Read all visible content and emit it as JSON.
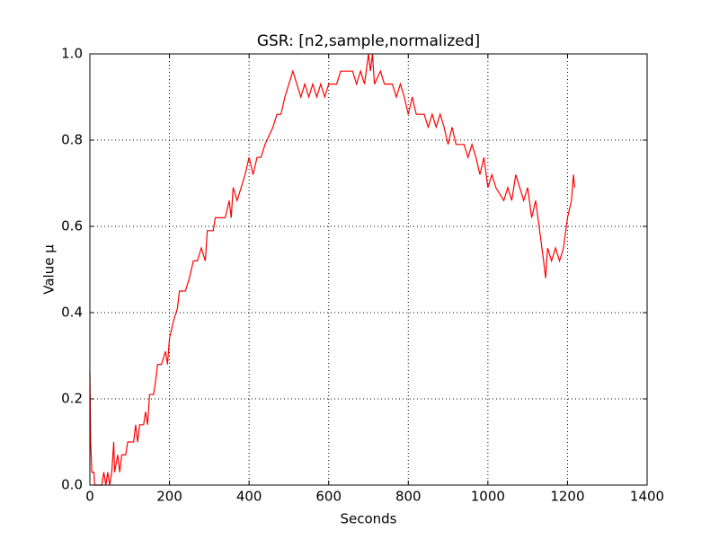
{
  "chart_data": {
    "type": "line",
    "title": "GSR: [n2,sample,normalized]",
    "x_label": "Seconds",
    "y_label": "Value μ",
    "x": [
      0,
      2,
      5,
      10,
      12,
      30,
      35,
      40,
      45,
      50,
      55,
      60,
      62,
      70,
      75,
      80,
      90,
      95,
      110,
      115,
      120,
      125,
      135,
      140,
      145,
      150,
      160,
      165,
      170,
      180,
      190,
      195,
      200,
      210,
      220,
      225,
      240,
      250,
      260,
      270,
      280,
      290,
      295,
      310,
      315,
      340,
      350,
      355,
      360,
      370,
      380,
      390,
      400,
      410,
      420,
      430,
      440,
      460,
      470,
      480,
      490,
      500,
      510,
      520,
      530,
      540,
      550,
      560,
      570,
      580,
      590,
      600,
      620,
      630,
      660,
      670,
      680,
      690,
      700,
      705,
      710,
      715,
      730,
      740,
      760,
      770,
      780,
      790,
      800,
      810,
      820,
      840,
      850,
      860,
      870,
      880,
      890,
      900,
      910,
      920,
      940,
      950,
      960,
      970,
      980,
      990,
      1000,
      1010,
      1020,
      1040,
      1050,
      1060,
      1070,
      1080,
      1090,
      1100,
      1110,
      1120,
      1130,
      1140,
      1145,
      1150,
      1160,
      1170,
      1180,
      1190,
      1200,
      1210,
      1215,
      1218
    ],
    "series": [
      {
        "name": "GSR",
        "color": "#ff0000",
        "values": [
          0.26,
          0.1,
          0.03,
          0.03,
          0,
          0,
          0.03,
          0,
          0.03,
          0,
          0.03,
          0.1,
          0.03,
          0.07,
          0.03,
          0.07,
          0.07,
          0.1,
          0.1,
          0.14,
          0.1,
          0.14,
          0.14,
          0.17,
          0.14,
          0.21,
          0.21,
          0.24,
          0.28,
          0.28,
          0.31,
          0.28,
          0.34,
          0.38,
          0.41,
          0.45,
          0.45,
          0.48,
          0.52,
          0.52,
          0.55,
          0.52,
          0.59,
          0.59,
          0.62,
          0.62,
          0.66,
          0.62,
          0.69,
          0.66,
          0.69,
          0.72,
          0.76,
          0.72,
          0.76,
          0.76,
          0.79,
          0.83,
          0.86,
          0.86,
          0.9,
          0.93,
          0.96,
          0.93,
          0.9,
          0.93,
          0.9,
          0.93,
          0.9,
          0.93,
          0.9,
          0.93,
          0.93,
          0.96,
          0.96,
          0.93,
          0.96,
          0.93,
          1.0,
          0.96,
          1.0,
          0.93,
          0.96,
          0.93,
          0.93,
          0.9,
          0.93,
          0.9,
          0.86,
          0.9,
          0.86,
          0.86,
          0.83,
          0.86,
          0.83,
          0.86,
          0.83,
          0.79,
          0.83,
          0.79,
          0.79,
          0.76,
          0.79,
          0.76,
          0.72,
          0.76,
          0.69,
          0.72,
          0.69,
          0.66,
          0.69,
          0.66,
          0.72,
          0.69,
          0.66,
          0.69,
          0.62,
          0.66,
          0.59,
          0.52,
          0.48,
          0.55,
          0.52,
          0.55,
          0.52,
          0.55,
          0.62,
          0.66,
          0.72,
          0.69
        ]
      }
    ],
    "xlim": [
      0,
      1400
    ],
    "xticks": [
      0,
      200,
      400,
      600,
      800,
      1000,
      1200,
      1400
    ],
    "ylim": [
      0,
      1
    ],
    "yticks": [
      {
        "value": 0,
        "label": "0.0"
      },
      0.2,
      0.4,
      0.6,
      0.8,
      {
        "value": 1,
        "label": "1.0"
      }
    ],
    "grid": true
  }
}
